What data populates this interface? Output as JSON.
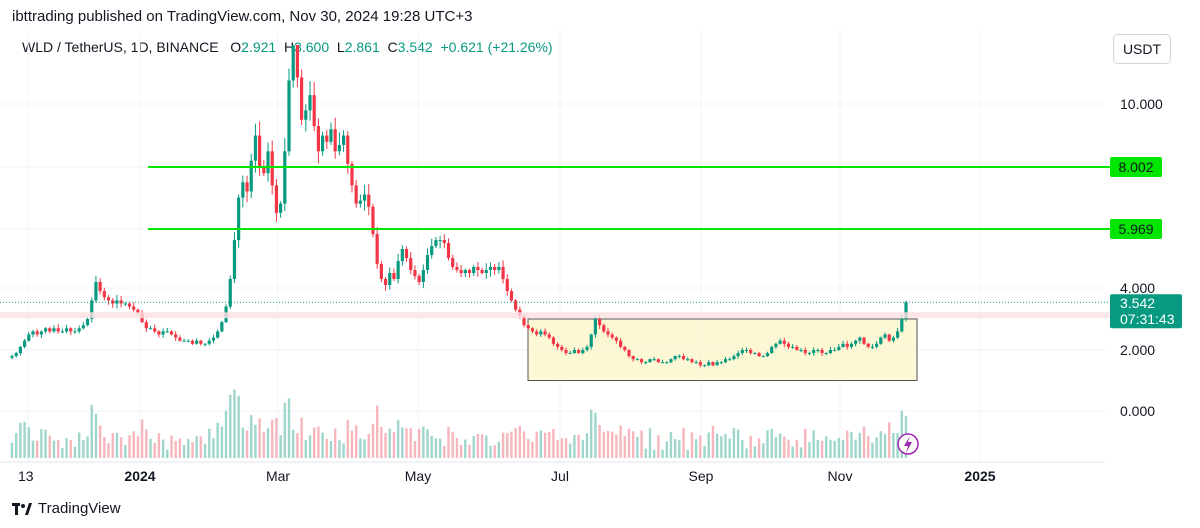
{
  "header": {
    "published_text": "ibttrading published on TradingView.com, Nov 30, 2024 19:28 UTC+3"
  },
  "symbol": {
    "title": "WLD / TetherUS, 1D, BINANCE",
    "o_label": "O",
    "o_value": "2.921",
    "h_label": "H",
    "h_value": "3.600",
    "l_label": "L",
    "l_value": "2.861",
    "c_label": "C",
    "c_value": "3.542",
    "change": "+0.621 (+21.26%)"
  },
  "currency_label": "USDT",
  "footer": {
    "brand": "TradingView"
  },
  "colors": {
    "up": "#089981",
    "down": "#f23645",
    "level_line": "#00e600",
    "zone_fill": "#fbf6c8",
    "zone_border": "#555555",
    "price_tag": "#089981",
    "lightning": "#9c27b0"
  },
  "chart_data": {
    "type": "candlestick",
    "price_axis_labels": [
      "10.000",
      "4.000",
      "2.000",
      "0.000"
    ],
    "time_axis_labels": [
      "13",
      "2024",
      "Mar",
      "May",
      "Jul",
      "Sep",
      "Nov",
      "2025"
    ],
    "levels": [
      {
        "value": "8.002"
      },
      {
        "value": "5.969"
      }
    ],
    "range_box": {
      "from": "Jun",
      "to": "Nov",
      "low": 1.0,
      "high": 3.0
    },
    "last_price": {
      "value": "3.542",
      "countdown": "07:31:43"
    },
    "series_close": [
      1.8,
      1.9,
      2.1,
      2.3,
      2.5,
      2.6,
      2.5,
      2.6,
      2.7,
      2.6,
      2.7,
      2.6,
      2.6,
      2.7,
      2.6,
      2.6,
      2.7,
      2.8,
      3.0,
      3.6,
      4.2,
      3.9,
      3.7,
      3.6,
      3.5,
      3.6,
      3.5,
      3.5,
      3.4,
      3.3,
      3.2,
      2.9,
      2.7,
      2.7,
      2.6,
      2.5,
      2.6,
      2.6,
      2.5,
      2.4,
      2.3,
      2.3,
      2.3,
      2.2,
      2.3,
      2.2,
      2.2,
      2.3,
      2.4,
      2.6,
      2.9,
      3.4,
      4.3,
      5.6,
      7.0,
      7.5,
      7.2,
      8.2,
      9.0,
      8.0,
      7.8,
      8.5,
      7.4,
      6.5,
      6.8,
      8.5,
      10.8,
      12.0,
      10.9,
      9.5,
      9.8,
      10.3,
      9.3,
      8.5,
      9.0,
      8.8,
      9.2,
      8.5,
      8.7,
      9.0,
      8.1,
      7.4,
      6.8,
      6.9,
      7.1,
      6.7,
      5.8,
      4.8,
      4.3,
      4.1,
      4.5,
      4.3,
      4.9,
      5.3,
      5.0,
      4.6,
      4.4,
      4.2,
      4.6,
      5.1,
      5.4,
      5.6,
      5.6,
      5.5,
      5.0,
      4.7,
      4.6,
      4.5,
      4.6,
      4.5,
      4.7,
      4.6,
      4.5,
      4.6,
      4.7,
      4.6,
      4.7,
      4.3,
      3.9,
      3.6,
      3.3,
      3.1,
      2.8,
      2.7,
      2.6,
      2.5,
      2.6,
      2.5,
      2.4,
      2.2,
      2.1,
      2.0,
      1.9,
      1.9,
      2.0,
      1.9,
      2.0,
      2.1,
      2.5,
      3.0,
      2.8,
      2.6,
      2.5,
      2.4,
      2.3,
      2.1,
      2.0,
      1.8,
      1.7,
      1.7,
      1.6,
      1.6,
      1.7,
      1.7,
      1.6,
      1.6,
      1.6,
      1.7,
      1.8,
      1.8,
      1.7,
      1.7,
      1.6,
      1.6,
      1.5,
      1.5,
      1.6,
      1.5,
      1.6,
      1.6,
      1.7,
      1.7,
      1.8,
      1.9,
      2.0,
      2.0,
      1.9,
      1.9,
      1.8,
      1.8,
      1.9,
      2.1,
      2.2,
      2.3,
      2.2,
      2.1,
      2.1,
      2.0,
      2.0,
      1.9,
      1.9,
      2.0,
      2.0,
      1.9,
      1.9,
      2.0,
      2.0,
      2.1,
      2.2,
      2.1,
      2.2,
      2.3,
      2.4,
      2.2,
      2.1,
      2.1,
      2.2,
      2.4,
      2.5,
      2.3,
      2.4,
      2.6,
      3.0,
      3.542
    ]
  }
}
